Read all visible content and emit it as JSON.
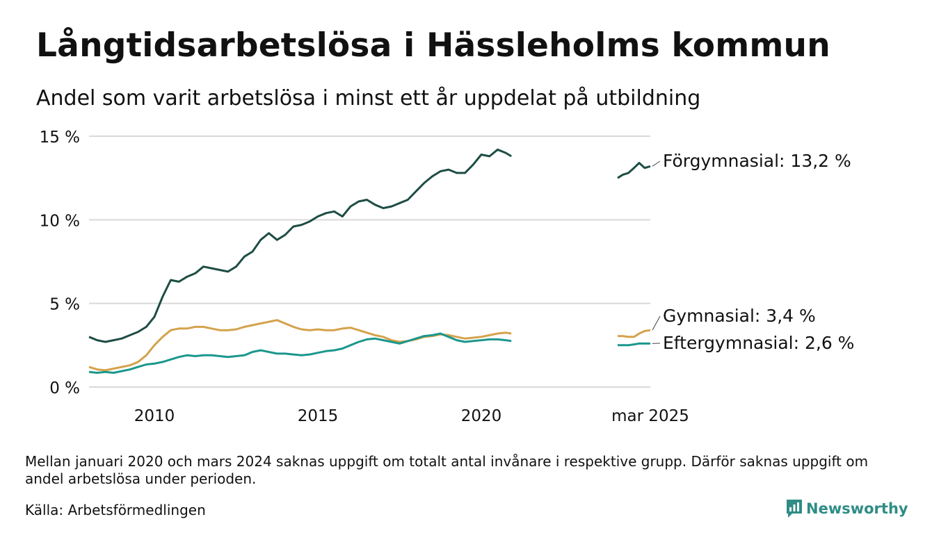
{
  "title": "Långtidsarbetslösa i Hässleholms kommun",
  "subtitle": "Andel som varit arbetslösa i minst ett år uppdelat på utbildning",
  "note": "Mellan januari 2020 och mars 2024 saknas uppgift om totalt antal invånare i respektive grupp. Därför saknas uppgift om andel arbetslösa under perioden.",
  "source": "Källa: Arbetsförmedlingen",
  "brand": "Newsworthy",
  "colors": {
    "forgymnasial": "#1d4d44",
    "gymnasial": "#d4a24c",
    "eftergymnasial": "#1b978c",
    "grid": "#d9d9d9",
    "brand": "#2f8c86"
  },
  "chart_data": {
    "type": "line",
    "title": "Långtidsarbetslösa i Hässleholms kommun",
    "subtitle": "Andel som varit arbetslösa i minst ett år uppdelat på utbildning",
    "ylim": [
      0,
      15
    ],
    "yticks": [
      0,
      5,
      10,
      15
    ],
    "ytick_labels": [
      "0 %",
      "5 %",
      "10 %",
      "15 %"
    ],
    "xticks": [
      2010,
      2015,
      2020,
      2025.17
    ],
    "xtick_labels": [
      "2010",
      "2015",
      "2020",
      "mar 2025"
    ],
    "grid": true,
    "legend": "end-labels-right",
    "series": [
      {
        "name": "Förgymnasial",
        "end_label": "Förgymnasial: 13,2 %",
        "segments": [
          [
            [
              2008.0,
              3.0
            ],
            [
              2008.25,
              2.8
            ],
            [
              2008.5,
              2.7
            ],
            [
              2008.75,
              2.8
            ],
            [
              2009.0,
              2.9
            ],
            [
              2009.25,
              3.1
            ],
            [
              2009.5,
              3.3
            ],
            [
              2009.75,
              3.6
            ],
            [
              2010.0,
              4.2
            ],
            [
              2010.25,
              5.4
            ],
            [
              2010.5,
              6.4
            ],
            [
              2010.75,
              6.3
            ],
            [
              2011.0,
              6.6
            ],
            [
              2011.25,
              6.8
            ],
            [
              2011.5,
              7.2
            ],
            [
              2011.75,
              7.1
            ],
            [
              2012.0,
              7.0
            ],
            [
              2012.25,
              6.9
            ],
            [
              2012.5,
              7.2
            ],
            [
              2012.75,
              7.8
            ],
            [
              2013.0,
              8.1
            ],
            [
              2013.25,
              8.8
            ],
            [
              2013.5,
              9.2
            ],
            [
              2013.75,
              8.8
            ],
            [
              2014.0,
              9.1
            ],
            [
              2014.25,
              9.6
            ],
            [
              2014.5,
              9.7
            ],
            [
              2014.75,
              9.9
            ],
            [
              2015.0,
              10.2
            ],
            [
              2015.25,
              10.4
            ],
            [
              2015.5,
              10.5
            ],
            [
              2015.75,
              10.2
            ],
            [
              2016.0,
              10.8
            ],
            [
              2016.25,
              11.1
            ],
            [
              2016.5,
              11.2
            ],
            [
              2016.75,
              10.9
            ],
            [
              2017.0,
              10.7
            ],
            [
              2017.25,
              10.8
            ],
            [
              2017.5,
              11.0
            ],
            [
              2017.75,
              11.2
            ],
            [
              2018.0,
              11.7
            ],
            [
              2018.25,
              12.2
            ],
            [
              2018.5,
              12.6
            ],
            [
              2018.75,
              12.9
            ],
            [
              2019.0,
              13.0
            ],
            [
              2019.25,
              12.8
            ],
            [
              2019.5,
              12.8
            ],
            [
              2019.75,
              13.3
            ],
            [
              2020.0,
              13.9
            ],
            [
              2020.25,
              13.8
            ],
            [
              2020.5,
              14.2
            ],
            [
              2020.75,
              14.0
            ],
            [
              2020.92,
              13.8
            ]
          ],
          [
            [
              2024.17,
              12.5
            ],
            [
              2024.33,
              12.7
            ],
            [
              2024.5,
              12.8
            ],
            [
              2024.67,
              13.1
            ],
            [
              2024.83,
              13.4
            ],
            [
              2025.0,
              13.1
            ],
            [
              2025.17,
              13.2
            ]
          ]
        ]
      },
      {
        "name": "Gymnasial",
        "end_label": "Gymnasial:  3,4 %",
        "segments": [
          [
            [
              2008.0,
              1.2
            ],
            [
              2008.25,
              1.05
            ],
            [
              2008.5,
              1.0
            ],
            [
              2008.75,
              1.1
            ],
            [
              2009.0,
              1.2
            ],
            [
              2009.25,
              1.3
            ],
            [
              2009.5,
              1.5
            ],
            [
              2009.75,
              1.9
            ],
            [
              2010.0,
              2.5
            ],
            [
              2010.25,
              3.0
            ],
            [
              2010.5,
              3.4
            ],
            [
              2010.75,
              3.5
            ],
            [
              2011.0,
              3.5
            ],
            [
              2011.25,
              3.6
            ],
            [
              2011.5,
              3.6
            ],
            [
              2011.75,
              3.5
            ],
            [
              2012.0,
              3.4
            ],
            [
              2012.25,
              3.4
            ],
            [
              2012.5,
              3.45
            ],
            [
              2012.75,
              3.6
            ],
            [
              2013.0,
              3.7
            ],
            [
              2013.25,
              3.8
            ],
            [
              2013.5,
              3.9
            ],
            [
              2013.75,
              4.0
            ],
            [
              2014.0,
              3.8
            ],
            [
              2014.25,
              3.6
            ],
            [
              2014.5,
              3.45
            ],
            [
              2014.75,
              3.4
            ],
            [
              2015.0,
              3.45
            ],
            [
              2015.25,
              3.4
            ],
            [
              2015.5,
              3.4
            ],
            [
              2015.75,
              3.5
            ],
            [
              2016.0,
              3.55
            ],
            [
              2016.25,
              3.4
            ],
            [
              2016.5,
              3.25
            ],
            [
              2016.75,
              3.1
            ],
            [
              2017.0,
              3.0
            ],
            [
              2017.25,
              2.8
            ],
            [
              2017.5,
              2.7
            ],
            [
              2017.75,
              2.75
            ],
            [
              2018.0,
              2.85
            ],
            [
              2018.25,
              3.0
            ],
            [
              2018.5,
              3.05
            ],
            [
              2018.75,
              3.15
            ],
            [
              2019.0,
              3.1
            ],
            [
              2019.25,
              3.0
            ],
            [
              2019.5,
              2.9
            ],
            [
              2019.75,
              2.95
            ],
            [
              2020.0,
              3.0
            ],
            [
              2020.25,
              3.1
            ],
            [
              2020.5,
              3.2
            ],
            [
              2020.75,
              3.25
            ],
            [
              2020.92,
              3.2
            ]
          ],
          [
            [
              2024.17,
              3.05
            ],
            [
              2024.33,
              3.05
            ],
            [
              2024.5,
              3.0
            ],
            [
              2024.67,
              3.0
            ],
            [
              2024.83,
              3.2
            ],
            [
              2025.0,
              3.35
            ],
            [
              2025.17,
              3.4
            ]
          ]
        ]
      },
      {
        "name": "Eftergymnasial",
        "end_label": "Eftergymnasial:  2,6 %",
        "segments": [
          [
            [
              2008.0,
              0.9
            ],
            [
              2008.25,
              0.85
            ],
            [
              2008.5,
              0.9
            ],
            [
              2008.75,
              0.85
            ],
            [
              2009.0,
              0.95
            ],
            [
              2009.25,
              1.05
            ],
            [
              2009.5,
              1.2
            ],
            [
              2009.75,
              1.35
            ],
            [
              2010.0,
              1.4
            ],
            [
              2010.25,
              1.5
            ],
            [
              2010.5,
              1.65
            ],
            [
              2010.75,
              1.8
            ],
            [
              2011.0,
              1.9
            ],
            [
              2011.25,
              1.85
            ],
            [
              2011.5,
              1.9
            ],
            [
              2011.75,
              1.9
            ],
            [
              2012.0,
              1.85
            ],
            [
              2012.25,
              1.8
            ],
            [
              2012.5,
              1.85
            ],
            [
              2012.75,
              1.9
            ],
            [
              2013.0,
              2.1
            ],
            [
              2013.25,
              2.2
            ],
            [
              2013.5,
              2.1
            ],
            [
              2013.75,
              2.0
            ],
            [
              2014.0,
              2.0
            ],
            [
              2014.25,
              1.95
            ],
            [
              2014.5,
              1.9
            ],
            [
              2014.75,
              1.95
            ],
            [
              2015.0,
              2.05
            ],
            [
              2015.25,
              2.15
            ],
            [
              2015.5,
              2.2
            ],
            [
              2015.75,
              2.3
            ],
            [
              2016.0,
              2.5
            ],
            [
              2016.25,
              2.7
            ],
            [
              2016.5,
              2.85
            ],
            [
              2016.75,
              2.9
            ],
            [
              2017.0,
              2.8
            ],
            [
              2017.25,
              2.7
            ],
            [
              2017.5,
              2.6
            ],
            [
              2017.75,
              2.75
            ],
            [
              2018.0,
              2.9
            ],
            [
              2018.25,
              3.05
            ],
            [
              2018.5,
              3.1
            ],
            [
              2018.75,
              3.2
            ],
            [
              2019.0,
              3.0
            ],
            [
              2019.25,
              2.8
            ],
            [
              2019.5,
              2.7
            ],
            [
              2019.75,
              2.75
            ],
            [
              2020.0,
              2.8
            ],
            [
              2020.25,
              2.85
            ],
            [
              2020.5,
              2.85
            ],
            [
              2020.75,
              2.8
            ],
            [
              2020.92,
              2.75
            ]
          ],
          [
            [
              2024.17,
              2.5
            ],
            [
              2024.33,
              2.5
            ],
            [
              2024.5,
              2.5
            ],
            [
              2024.67,
              2.55
            ],
            [
              2024.83,
              2.6
            ],
            [
              2025.0,
              2.6
            ],
            [
              2025.17,
              2.6
            ]
          ]
        ]
      }
    ]
  }
}
